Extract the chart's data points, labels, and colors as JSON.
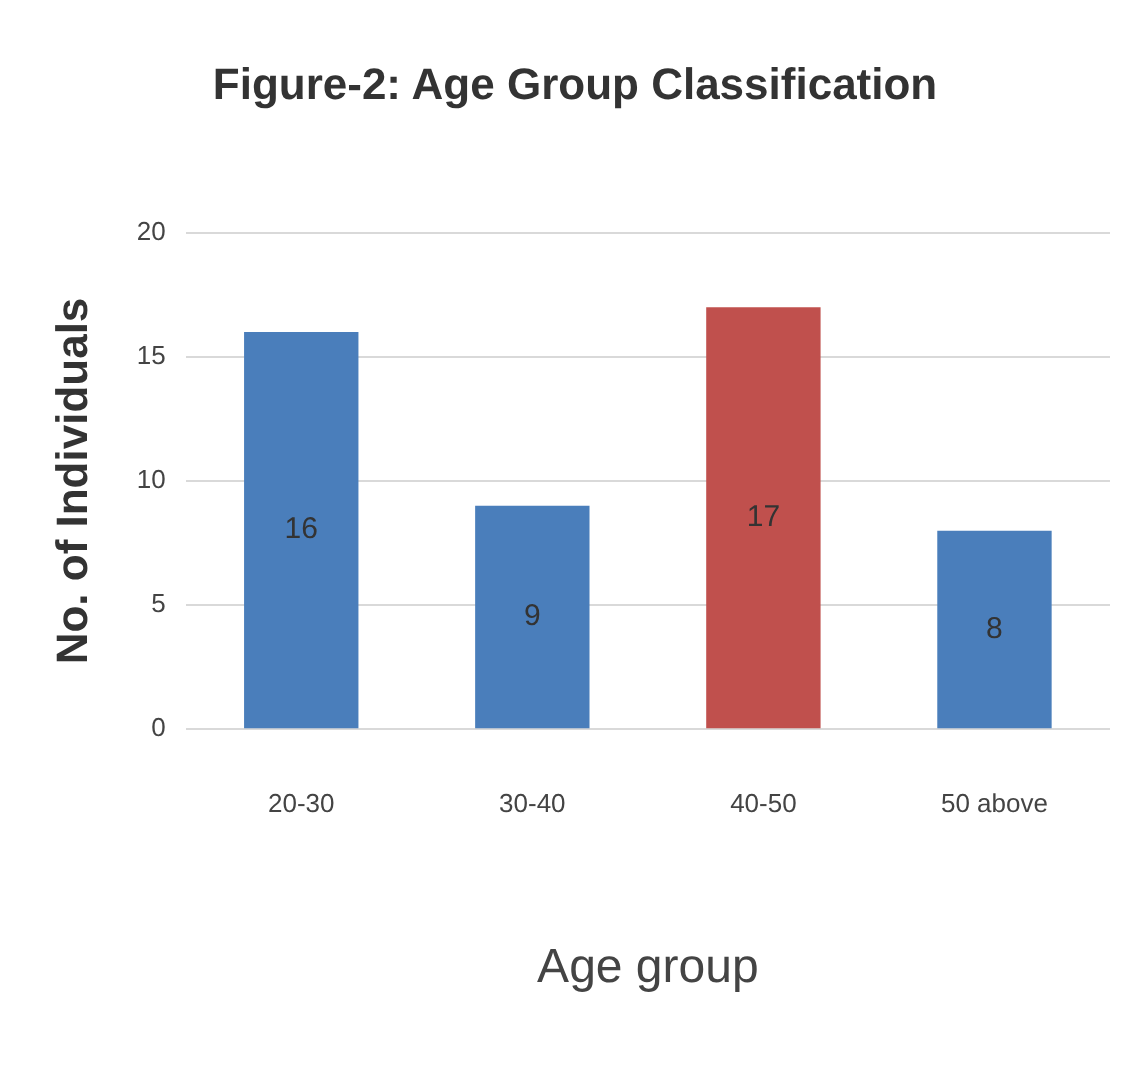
{
  "chart_data": {
    "type": "bar",
    "title": "Figure-2: Age Group Classification",
    "xlabel": "Age group",
    "ylabel": "No. of Individuals",
    "categories": [
      "20-30",
      "30-40",
      "40-50",
      "50 above"
    ],
    "values": [
      16,
      9,
      17,
      8
    ],
    "colors": [
      "#4a7ebb",
      "#4a7ebb",
      "#c0504d",
      "#4a7ebb"
    ],
    "ylim": [
      0,
      20
    ],
    "yticks": [
      0,
      5,
      10,
      15,
      20
    ],
    "grid": "y",
    "data_labels": true
  }
}
